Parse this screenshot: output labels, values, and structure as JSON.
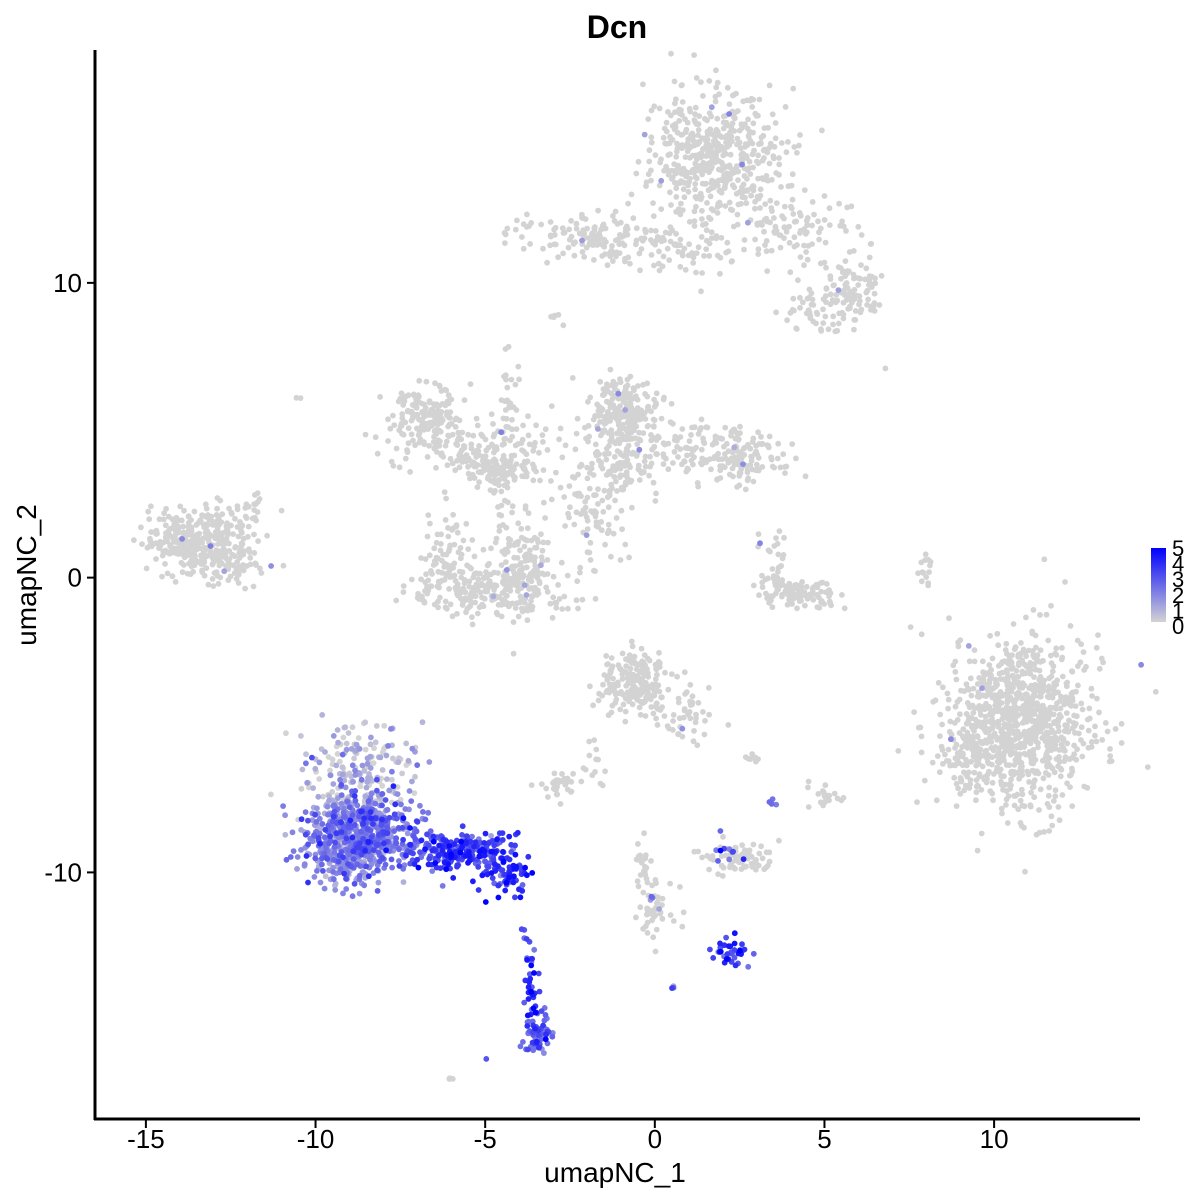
{
  "chart_data": {
    "type": "scatter",
    "title": "Dcn",
    "xlabel": "umapNC_1",
    "ylabel": "umapNC_2",
    "xlim": [
      -16.5,
      14.3
    ],
    "ylim": [
      -18.4,
      17.9
    ],
    "xticks": [
      -15,
      -10,
      -5,
      0,
      5,
      10
    ],
    "yticks": [
      -10,
      0,
      10
    ],
    "xtick_labels": [
      "-15",
      "-10",
      "-5",
      "0",
      "5",
      "10"
    ],
    "ytick_labels": [
      "-10",
      "0",
      "10"
    ],
    "grid": false,
    "legend": {
      "placement": "right",
      "type": "colorbar",
      "labels": [
        "5",
        "4",
        "3",
        "2",
        "1",
        "0"
      ],
      "range": [
        0,
        5
      ],
      "low_color": "#d3d3d3",
      "high_color": "#0000ff"
    },
    "point_color_by": "expression",
    "clusters": [
      {
        "cx": 1.8,
        "cy": 14.2,
        "sx": 1.1,
        "sy": 1.2,
        "n": 520,
        "expr": 0
      },
      {
        "cx": -2.0,
        "cy": 11.6,
        "sx": 1.2,
        "sy": 0.35,
        "n": 130,
        "expr": 0
      },
      {
        "cx": 0.8,
        "cy": 11.0,
        "sx": 1.5,
        "sy": 0.4,
        "n": 70,
        "expr": 0
      },
      {
        "cx": 4.2,
        "cy": 11.8,
        "sx": 1.0,
        "sy": 0.6,
        "n": 90,
        "expr": 0
      },
      {
        "cx": 5.8,
        "cy": 9.7,
        "sx": 0.5,
        "sy": 0.5,
        "n": 90,
        "expr": 0
      },
      {
        "cx": 4.6,
        "cy": 9.0,
        "sx": 0.45,
        "sy": 0.35,
        "n": 40,
        "expr": 0
      },
      {
        "cx": -2.9,
        "cy": 8.8,
        "sx": 0.15,
        "sy": 0.1,
        "n": 5,
        "expr": 0
      },
      {
        "cx": 6.8,
        "cy": 7.1,
        "sx": 0.05,
        "sy": 0.05,
        "n": 1,
        "expr": 0
      },
      {
        "cx": -6.8,
        "cy": 5.5,
        "sx": 0.5,
        "sy": 0.5,
        "n": 150,
        "expr": 0
      },
      {
        "cx": -5.5,
        "cy": 4.5,
        "sx": 1.1,
        "sy": 0.5,
        "n": 110,
        "expr": 0
      },
      {
        "cx": -4.6,
        "cy": 3.7,
        "sx": 0.5,
        "sy": 0.3,
        "n": 110,
        "expr": 0
      },
      {
        "cx": -4.3,
        "cy": 5.8,
        "sx": 0.2,
        "sy": 1.0,
        "n": 30,
        "expr": 0
      },
      {
        "cx": -3.6,
        "cy": 4.6,
        "sx": 0.5,
        "sy": 0.5,
        "n": 20,
        "expr": 0
      },
      {
        "cx": -0.9,
        "cy": 5.6,
        "sx": 0.5,
        "sy": 0.5,
        "n": 200,
        "expr": 0
      },
      {
        "cx": -1.3,
        "cy": 3.8,
        "sx": 0.7,
        "sy": 0.8,
        "n": 140,
        "expr": 0
      },
      {
        "cx": 1.6,
        "cy": 4.3,
        "sx": 1.2,
        "sy": 0.45,
        "n": 150,
        "expr": 0
      },
      {
        "cx": 2.7,
        "cy": 3.9,
        "sx": 0.5,
        "sy": 0.4,
        "n": 60,
        "expr": 0
      },
      {
        "cx": -2.1,
        "cy": 2.3,
        "sx": 0.3,
        "sy": 0.5,
        "n": 25,
        "expr": 0
      },
      {
        "cx": -1.5,
        "cy": 1.2,
        "sx": 0.55,
        "sy": 0.4,
        "n": 20,
        "expr": 0
      },
      {
        "cx": -4.7,
        "cy": -0.4,
        "sx": 1.1,
        "sy": 0.5,
        "n": 240,
        "expr": 0
      },
      {
        "cx": -6.2,
        "cy": 0.5,
        "sx": 0.45,
        "sy": 0.8,
        "n": 80,
        "expr": 0
      },
      {
        "cx": -3.8,
        "cy": 0.9,
        "sx": 0.4,
        "sy": 0.9,
        "n": 80,
        "expr": 0
      },
      {
        "cx": -4.6,
        "cy": 2.2,
        "sx": 0.2,
        "sy": 0.8,
        "n": 25,
        "expr": 0
      },
      {
        "cx": -13.5,
        "cy": 1.3,
        "sx": 0.8,
        "sy": 0.55,
        "n": 330,
        "expr": 0
      },
      {
        "cx": -12.6,
        "cy": 0.5,
        "sx": 0.6,
        "sy": 0.4,
        "n": 60,
        "expr": 0
      },
      {
        "cx": -11.9,
        "cy": 2.2,
        "sx": 0.35,
        "sy": 0.35,
        "n": 20,
        "expr": 0
      },
      {
        "cx": 4.3,
        "cy": -0.6,
        "sx": 0.6,
        "sy": 0.25,
        "n": 90,
        "expr": 0
      },
      {
        "cx": 3.5,
        "cy": 0.5,
        "sx": 0.25,
        "sy": 0.7,
        "n": 25,
        "expr": 0
      },
      {
        "cx": 3.5,
        "cy": -0.3,
        "sx": 0.3,
        "sy": 0.2,
        "n": 15,
        "expr": 0
      },
      {
        "cx": 8.0,
        "cy": 0.3,
        "sx": 0.15,
        "sy": 0.5,
        "n": 15,
        "expr": 0
      },
      {
        "cx": 10.8,
        "cy": -4.9,
        "sx": 1.05,
        "sy": 1.45,
        "n": 950,
        "expr": 0
      },
      {
        "cx": 9.1,
        "cy": -5.8,
        "sx": 0.4,
        "sy": 0.7,
        "n": 60,
        "expr": 0
      },
      {
        "cx": -0.6,
        "cy": -3.7,
        "sx": 0.55,
        "sy": 0.5,
        "n": 180,
        "expr": 0
      },
      {
        "cx": 0.9,
        "cy": -4.8,
        "sx": 0.45,
        "sy": 0.5,
        "n": 40,
        "expr": 0
      },
      {
        "cx": -0.8,
        "cy": -2.8,
        "sx": 0.3,
        "sy": 0.25,
        "n": 20,
        "expr": 0
      },
      {
        "cx": -2.8,
        "cy": -7.0,
        "sx": 0.3,
        "sy": 0.25,
        "n": 35,
        "expr": 0
      },
      {
        "cx": -1.7,
        "cy": -6.1,
        "sx": 0.2,
        "sy": 0.5,
        "n": 12,
        "expr": 0
      },
      {
        "cx": 2.5,
        "cy": -9.5,
        "sx": 0.5,
        "sy": 0.25,
        "n": 70,
        "expr": 0
      },
      {
        "cx": 5.0,
        "cy": -7.4,
        "sx": 0.25,
        "sy": 0.2,
        "n": 20,
        "expr": 0
      },
      {
        "cx": 2.8,
        "cy": -6.1,
        "sx": 0.15,
        "sy": 0.1,
        "n": 8,
        "expr": 0
      },
      {
        "cx": -0.3,
        "cy": -9.9,
        "sx": 0.15,
        "sy": 0.5,
        "n": 25,
        "expr": 0
      },
      {
        "cx": 0.1,
        "cy": -11.4,
        "sx": 0.35,
        "sy": 0.5,
        "n": 40,
        "expr": 0
      },
      {
        "cx": -6.1,
        "cy": -17.0,
        "sx": 0.1,
        "sy": 0.08,
        "n": 4,
        "expr": 0
      },
      {
        "cx": -10.5,
        "cy": 6.1,
        "sx": 0.05,
        "sy": 0.05,
        "n": 2,
        "expr": 0
      },
      {
        "cx": -8.7,
        "cy": -6.6,
        "sx": 0.75,
        "sy": 0.9,
        "n": 190,
        "expr": 0.4
      },
      {
        "cx": -9.0,
        "cy": -8.9,
        "sx": 0.75,
        "sy": 0.75,
        "n": 560,
        "expr": 1.9
      },
      {
        "cx": -8.0,
        "cy": -8.6,
        "sx": 0.75,
        "sy": 0.7,
        "n": 200,
        "expr": 2.3
      },
      {
        "cx": -5.6,
        "cy": -9.3,
        "sx": 0.85,
        "sy": 0.35,
        "n": 230,
        "expr": 3.5
      },
      {
        "cx": -4.3,
        "cy": -10.1,
        "sx": 0.4,
        "sy": 0.3,
        "n": 60,
        "expr": 3.9
      },
      {
        "cx": -3.8,
        "cy": -12.4,
        "sx": 0.12,
        "sy": 0.35,
        "n": 10,
        "expr": 3.6
      },
      {
        "cx": -3.6,
        "cy": -14.2,
        "sx": 0.12,
        "sy": 0.45,
        "n": 30,
        "expr": 3.7
      },
      {
        "cx": -3.4,
        "cy": -15.5,
        "sx": 0.22,
        "sy": 0.35,
        "n": 60,
        "expr": 2.8
      },
      {
        "cx": -4.9,
        "cy": -16.4,
        "sx": 0.05,
        "sy": 0.05,
        "n": 1,
        "expr": 3.0
      },
      {
        "cx": 2.2,
        "cy": -12.7,
        "sx": 0.3,
        "sy": 0.25,
        "n": 35,
        "expr": 3.5
      },
      {
        "cx": 2.1,
        "cy": -9.3,
        "sx": 0.3,
        "sy": 0.25,
        "n": 10,
        "expr": 2.5
      },
      {
        "cx": 3.4,
        "cy": -7.6,
        "sx": 0.1,
        "sy": 0.08,
        "n": 4,
        "expr": 3.0
      },
      {
        "cx": 0.6,
        "cy": -13.9,
        "sx": 0.08,
        "sy": 0.06,
        "n": 3,
        "expr": 2.2
      },
      {
        "cx": -0.1,
        "cy": -10.9,
        "sx": 0.1,
        "sy": 0.1,
        "n": 3,
        "expr": 2.8
      }
    ]
  }
}
